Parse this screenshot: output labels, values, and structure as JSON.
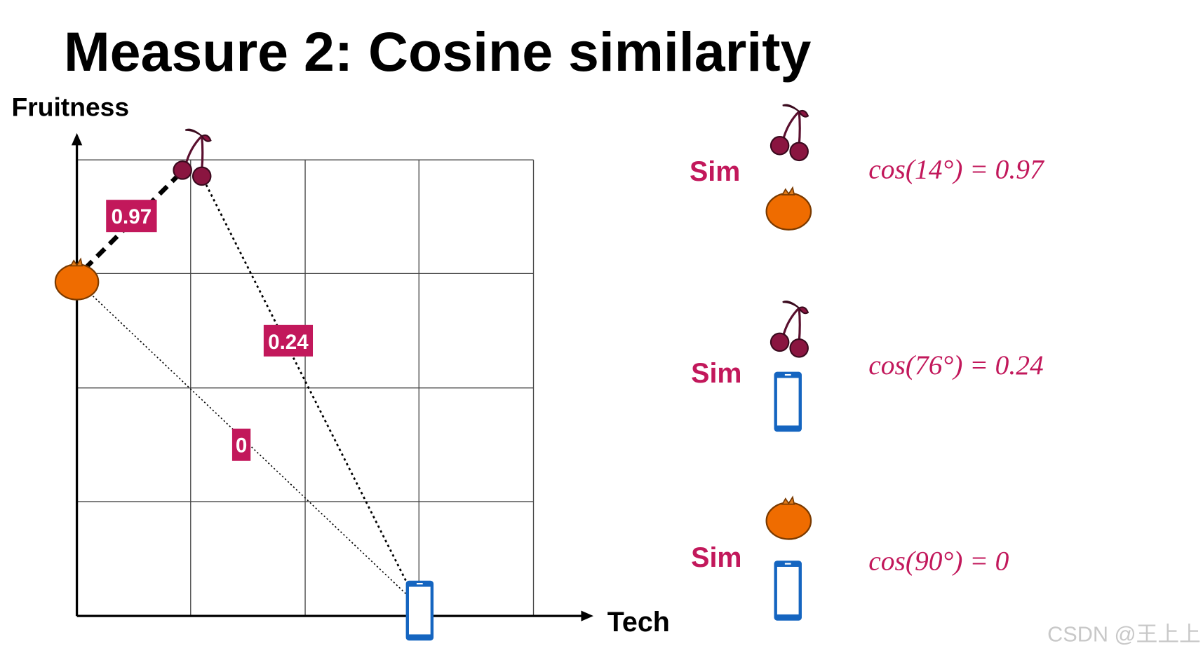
{
  "title": "Measure 2: Cosine similarity",
  "axes": {
    "y_label": "Fruitness",
    "x_label": "Tech"
  },
  "edges": [
    {
      "label": "0.97"
    },
    {
      "label": "0.24"
    },
    {
      "label": "0"
    }
  ],
  "comparisons": [
    {
      "label": "Sim",
      "formula": "cos(14°) = 0.97"
    },
    {
      "label": "Sim",
      "formula": "cos(76°) = 0.24"
    },
    {
      "label": "Sim",
      "formula": "cos(90°) = 0"
    }
  ],
  "watermark": "CSDN @王上上"
}
